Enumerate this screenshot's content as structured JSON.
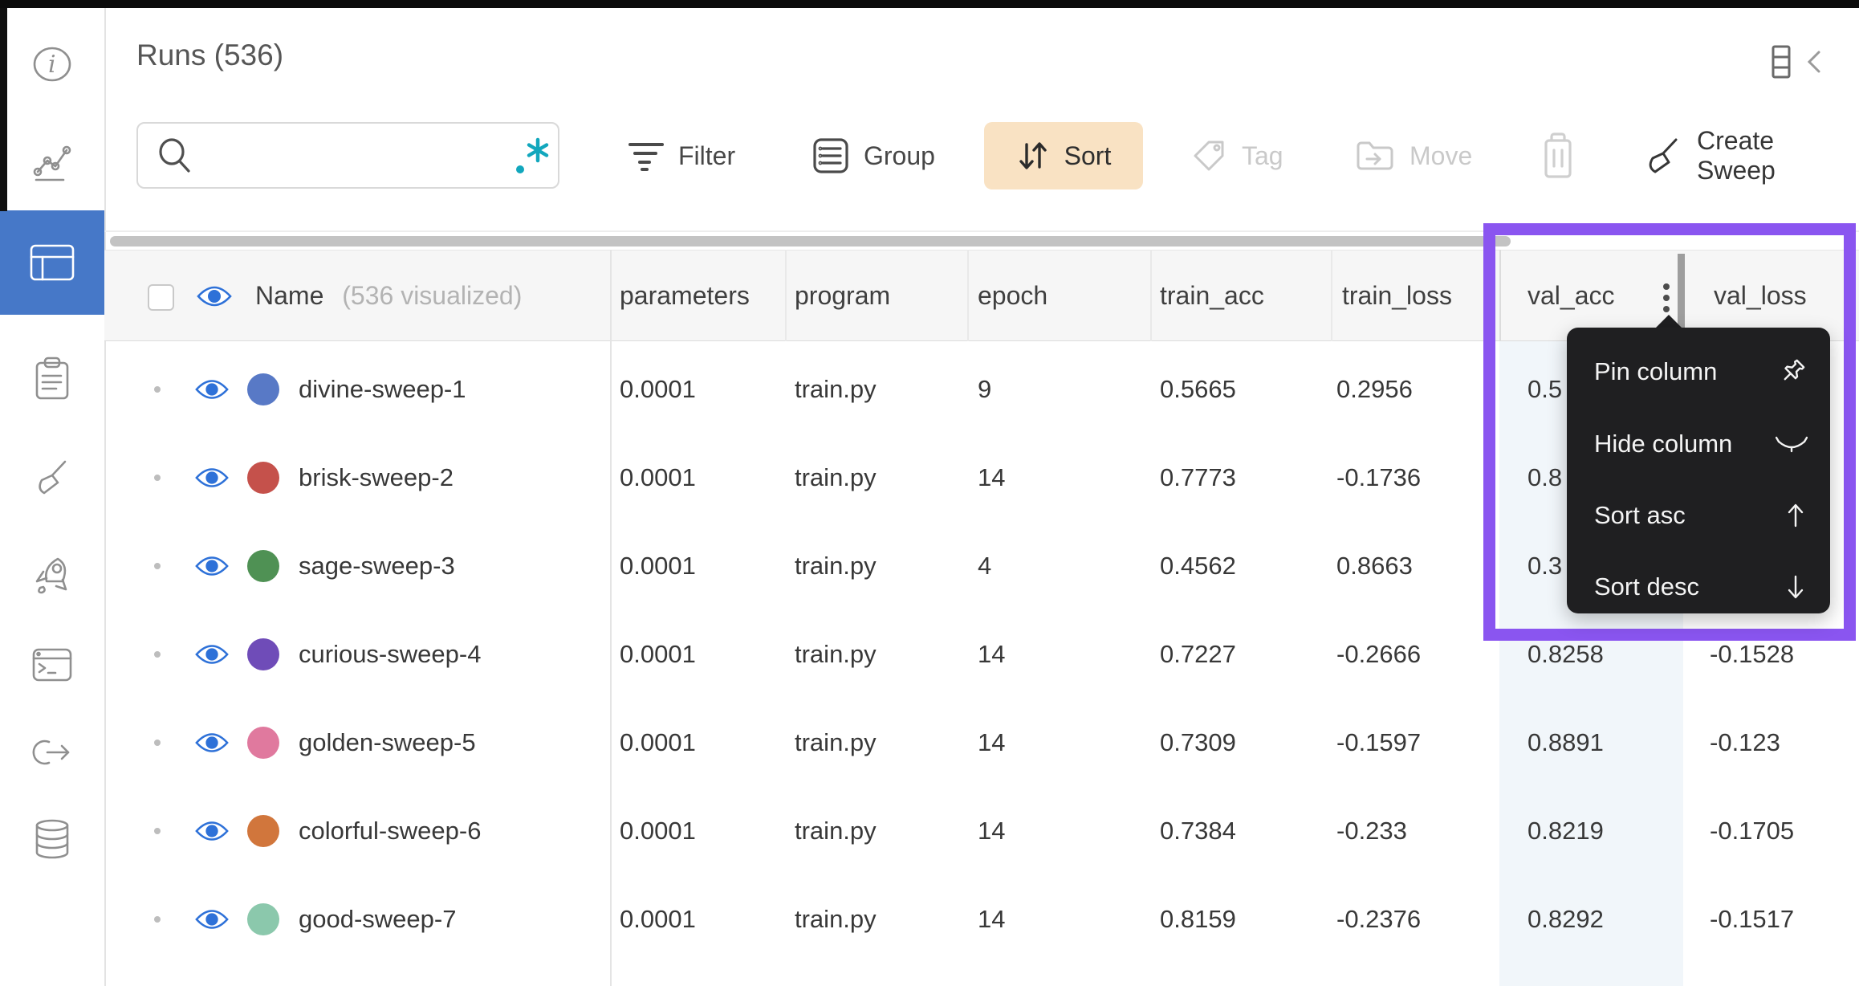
{
  "header": {
    "title": "Runs (536)"
  },
  "sidebar": {
    "items": [
      {
        "icon": "info-icon",
        "active": false
      },
      {
        "icon": "line-chart-icon",
        "active": false
      },
      {
        "icon": "runs-table-icon",
        "active": true
      },
      {
        "icon": "clipboard-icon",
        "active": false
      },
      {
        "icon": "broom-icon",
        "active": false
      },
      {
        "icon": "rocket-icon",
        "active": false
      },
      {
        "icon": "terminal-icon",
        "active": false
      },
      {
        "icon": "link-out-icon",
        "active": false
      },
      {
        "icon": "database-icon",
        "active": false
      }
    ]
  },
  "toolbar": {
    "search": {
      "value": "",
      "placeholder": "",
      "left_icon": "search-icon",
      "right_icon": "regex-icon"
    },
    "filter_label": "Filter",
    "group_label": "Group",
    "sort_label": "Sort",
    "tag_label": "Tag",
    "move_label": "Move",
    "trash_icon": "trash-icon",
    "create_sweep_label": "Create Sweep"
  },
  "table": {
    "name_column": {
      "label": "Name",
      "note": "(536 visualized)"
    },
    "columns": [
      "parameters",
      "program",
      "epoch",
      "train_acc",
      "train_loss",
      "val_acc",
      "val_loss"
    ],
    "rows": [
      {
        "name": "divine-sweep-1",
        "color": "#5879c6",
        "parameters": "0.0001",
        "program": "train.py",
        "epoch": "9",
        "train_acc": "0.5665",
        "train_loss": "0.2956",
        "val_acc": "0.5",
        "val_loss": ""
      },
      {
        "name": "brisk-sweep-2",
        "color": "#c5514b",
        "parameters": "0.0001",
        "program": "train.py",
        "epoch": "14",
        "train_acc": "0.7773",
        "train_loss": "-0.1736",
        "val_acc": "0.8",
        "val_loss": ""
      },
      {
        "name": "sage-sweep-3",
        "color": "#4f9154",
        "parameters": "0.0001",
        "program": "train.py",
        "epoch": "4",
        "train_acc": "0.4562",
        "train_loss": "0.8663",
        "val_acc": "0.3",
        "val_loss": ""
      },
      {
        "name": "curious-sweep-4",
        "color": "#6f4cb8",
        "parameters": "0.0001",
        "program": "train.py",
        "epoch": "14",
        "train_acc": "0.7227",
        "train_loss": "-0.2666",
        "val_acc": "0.8258",
        "val_loss": "-0.1528"
      },
      {
        "name": "golden-sweep-5",
        "color": "#e0799e",
        "parameters": "0.0001",
        "program": "train.py",
        "epoch": "14",
        "train_acc": "0.7309",
        "train_loss": "-0.1597",
        "val_acc": "0.8891",
        "val_loss": "-0.123"
      },
      {
        "name": "colorful-sweep-6",
        "color": "#d1763c",
        "parameters": "0.0001",
        "program": "train.py",
        "epoch": "14",
        "train_acc": "0.7384",
        "train_loss": "-0.233",
        "val_acc": "0.8219",
        "val_loss": "-0.1705"
      },
      {
        "name": "good-sweep-7",
        "color": "#8bc8ac",
        "parameters": "0.0001",
        "program": "train.py",
        "epoch": "14",
        "train_acc": "0.8159",
        "train_loss": "-0.2376",
        "val_acc": "0.8292",
        "val_loss": "-0.1517"
      }
    ]
  },
  "context_menu": {
    "target_column": "val_acc",
    "items": [
      {
        "label": "Pin column",
        "icon": "pin-icon"
      },
      {
        "label": "Hide column",
        "icon": "closed-eye-icon"
      },
      {
        "label": "Sort asc",
        "icon": "arrow-up-icon"
      },
      {
        "label": "Sort desc",
        "icon": "arrow-down-icon"
      }
    ]
  },
  "colors": {
    "accent_purple": "#8a55f0",
    "sidebar_active_blue": "#4678c8",
    "eye_blue": "#2e71d8",
    "sort_pill_bg": "#f9e2c3",
    "regex_teal": "#12a7bd",
    "val_column_tint": "#f1f6fa"
  }
}
